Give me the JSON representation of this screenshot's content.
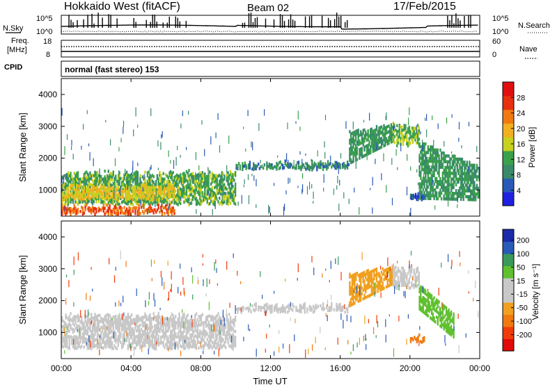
{
  "header": {
    "station": "Hokkaido West (fitACF)",
    "beam": "Beam 02",
    "date": "17/Feb/2015"
  },
  "strip_panels": {
    "nsky": {
      "label": "N.Sky",
      "y_top": "10^5",
      "y_bottom": "10^0"
    },
    "nsearch": {
      "label": "N.Search",
      "y_top": "10^5",
      "y_bottom": "10^0"
    },
    "freq": {
      "label_line1": "Freq.",
      "label_line2": "[MHz]",
      "y_top": "18",
      "y_bottom": "8"
    },
    "nave": {
      "label": "Nave",
      "y_top": "60",
      "y_bottom": "0"
    },
    "cpid": {
      "label": "CPID",
      "mode": "normal (fast stereo) 153"
    }
  },
  "colors": {
    "power_scale": [
      "#2020e0",
      "#2a5ab8",
      "#3a8a6a",
      "#3aa14a",
      "#c8d020",
      "#f0b020",
      "#f07a10",
      "#e83010",
      "#e01010"
    ],
    "velocity_scale": [
      "#e00a0a",
      "#f03c0a",
      "#f07a10",
      "#f0a020",
      "#c8c8c8",
      "#c8c8c8",
      "#60c030",
      "#3a9a5a",
      "#2a5ab8",
      "#1a2aa8"
    ],
    "frame": "#000000"
  },
  "chart_data": [
    {
      "type": "heatmap",
      "name": "power",
      "ylabel": "Slant Range [km]",
      "xlabel": "",
      "ylim": [
        180,
        4500
      ],
      "y_ticks": [
        "1000",
        "2000",
        "3000",
        "4000"
      ],
      "x_ticks": [
        "00:00",
        "04:00",
        "08:00",
        "12:00",
        "16:00",
        "20:00",
        "00:00"
      ],
      "colorbar_label": "Power [dB]",
      "colorbar_ticks": [
        "4",
        "8",
        "12",
        "16",
        "20",
        "24",
        "28"
      ],
      "colorbar_range": [
        0,
        32
      ],
      "bands": [
        {
          "t0": 0.0,
          "t1": 10.0,
          "r0": 550,
          "r1": 1500,
          "level": 12
        },
        {
          "t0": 0.0,
          "t1": 6.5,
          "r0": 700,
          "r1": 1100,
          "level": 18
        },
        {
          "t0": 0.0,
          "t1": 6.5,
          "r0": 250,
          "r1": 450,
          "level": 26
        },
        {
          "t0": 10.0,
          "t1": 16.5,
          "r0": 1650,
          "r1": 1800,
          "level": 8
        },
        {
          "t0": 16.5,
          "t1": 19.0,
          "r0": 1800,
          "r1": 2800,
          "level": 10
        },
        {
          "t0": 19.0,
          "t1": 20.5,
          "r0": 2400,
          "r1": 3000,
          "level": 14
        },
        {
          "t0": 20.5,
          "t1": 24.0,
          "r0": 700,
          "r1": 2500,
          "level": 10
        },
        {
          "t0": 20.0,
          "t1": 20.8,
          "r0": 700,
          "r1": 850,
          "level": 4
        }
      ]
    },
    {
      "type": "heatmap",
      "name": "velocity",
      "ylabel": "Slant Range [km]",
      "xlabel": "Time UT",
      "ylim": [
        180,
        4500
      ],
      "y_ticks": [
        "1000",
        "2000",
        "3000",
        "4000"
      ],
      "x_ticks": [
        "00:00",
        "04:00",
        "08:00",
        "12:00",
        "16:00",
        "20:00",
        "00:00"
      ],
      "colorbar_label": "Velocity [m s⁻¹]",
      "colorbar_ticks": [
        "-200",
        "-100",
        "-50",
        "-15",
        "15",
        "50",
        "100",
        "200"
      ],
      "bands": [
        {
          "t0": 0.0,
          "t1": 10.0,
          "r0": 500,
          "r1": 1500,
          "level": 0
        },
        {
          "t0": 10.0,
          "t1": 16.5,
          "r0": 1650,
          "r1": 1800,
          "level": 0
        },
        {
          "t0": 16.5,
          "t1": 19.0,
          "r0": 1800,
          "r1": 2800,
          "level": -30
        },
        {
          "t0": 19.0,
          "t1": 20.5,
          "r0": 2400,
          "r1": 3000,
          "level": 0
        },
        {
          "t0": 20.5,
          "t1": 22.5,
          "r0": 800,
          "r1": 2500,
          "level": 40
        },
        {
          "t0": 20.0,
          "t1": 20.8,
          "r0": 700,
          "r1": 850,
          "level": -60
        }
      ]
    }
  ]
}
